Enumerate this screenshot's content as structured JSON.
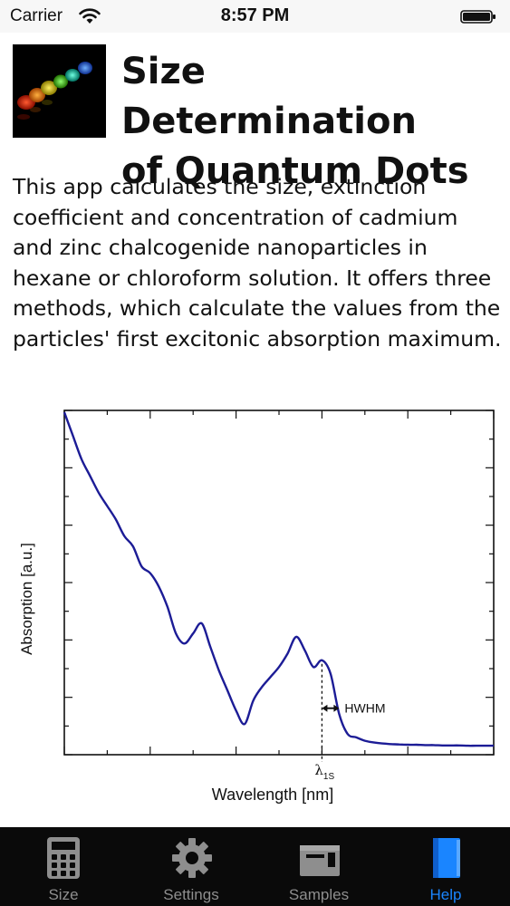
{
  "status_bar": {
    "carrier": "Carrier",
    "time": "8:57 PM"
  },
  "header": {
    "title_line1": "Size Determination",
    "title_line2": "of Quantum Dots",
    "icon": "quantum-dots-app-icon"
  },
  "description": "This app calculates the size, extinction coefficient and concentration of cadmium and zinc chalcogenide nanoparticles in hexane or chloroform solution. It offers three methods, which calculate the values from the particles' first excitonic absorption maximum.",
  "chart_data": {
    "type": "line",
    "xlabel": "Wavelength [nm]",
    "ylabel": "Absorption [a.u.]",
    "x_tick_label_symbol": "λ",
    "x_tick_label_subscript": "1S",
    "annotation": "HWHM",
    "tick_labels_shown": false,
    "grid": false,
    "series": [
      {
        "color": "#1c1c96",
        "x": [
          0,
          2,
          4,
          6,
          8,
          10,
          12,
          14,
          16,
          18,
          20,
          22,
          24,
          26,
          28,
          30,
          32,
          34,
          36,
          38,
          40,
          42,
          44,
          46,
          48,
          50,
          52,
          54,
          56,
          58,
          60,
          62,
          64,
          66,
          68,
          70,
          72,
          74,
          76,
          78,
          80,
          82,
          84,
          86,
          88,
          90,
          92,
          94,
          96,
          100
        ],
        "y": [
          1.0,
          0.93,
          0.86,
          0.81,
          0.76,
          0.72,
          0.68,
          0.63,
          0.6,
          0.54,
          0.52,
          0.48,
          0.42,
          0.34,
          0.31,
          0.34,
          0.37,
          0.3,
          0.23,
          0.17,
          0.11,
          0.07,
          0.14,
          0.18,
          0.21,
          0.24,
          0.28,
          0.33,
          0.29,
          0.24,
          0.26,
          0.22,
          0.1,
          0.04,
          0.03,
          0.02,
          0.015,
          0.012,
          0.01,
          0.009,
          0.008,
          0.008,
          0.007,
          0.007,
          0.006,
          0.006,
          0.006,
          0.005,
          0.005,
          0.005
        ]
      }
    ]
  },
  "tabs": [
    {
      "label": "Size",
      "icon": "calculator-icon",
      "active": false
    },
    {
      "label": "Settings",
      "icon": "gear-icon",
      "active": false
    },
    {
      "label": "Samples",
      "icon": "samples-icon",
      "active": false
    },
    {
      "label": "Help",
      "icon": "book-icon",
      "active": true
    }
  ],
  "colors": {
    "active_tab": "#1a85ff",
    "inactive_tab": "#8e8e8e",
    "tabbar_bg": "#0a0a0a",
    "curve": "#1c1c96"
  }
}
